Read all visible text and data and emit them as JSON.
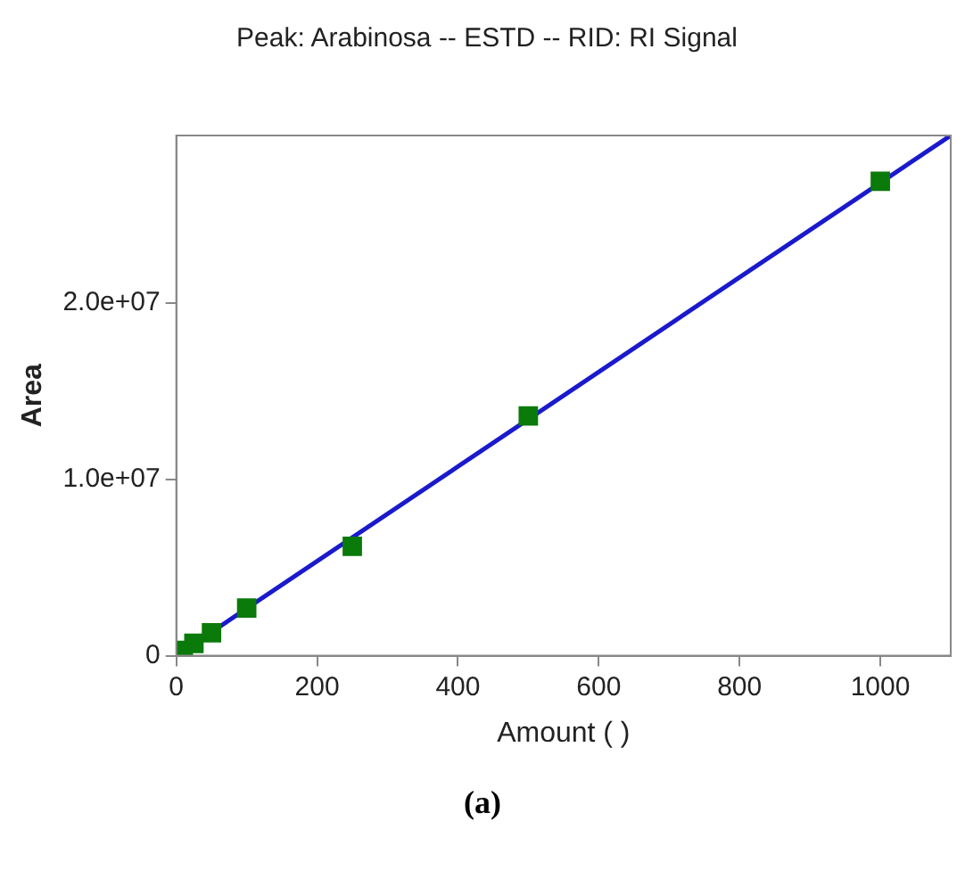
{
  "chart_data": {
    "type": "scatter",
    "title": "Peak: Arabinosa -- ESTD -- RID: RI Signal",
    "xlabel": "Amount ( )",
    "ylabel": "Area",
    "annotations": [
      "(a)"
    ],
    "xlim": [
      0,
      1100
    ],
    "xticks": [
      0,
      200,
      400,
      600,
      800,
      1000
    ],
    "ylim": [
      0,
      29500000
    ],
    "yticks": [
      0,
      {
        "value": 10000000,
        "label": "1.0e+07"
      },
      {
        "value": 20000000,
        "label": "2.0e+07"
      }
    ],
    "grid": false,
    "legend": false,
    "series": [
      {
        "color": "#0a7a0a",
        "marker": "square",
        "x": [
          10,
          25,
          50,
          100,
          250,
          500,
          1000
        ],
        "values": [
          300000,
          700000,
          1300000,
          2700000,
          6200000,
          13600000,
          26900000
        ]
      },
      {
        "type": "line",
        "color": "#1a1acc",
        "x": [
          0,
          1100
        ],
        "values": [
          0,
          29500000
        ],
        "line_style": "solid",
        "marker": "none"
      }
    ]
  }
}
